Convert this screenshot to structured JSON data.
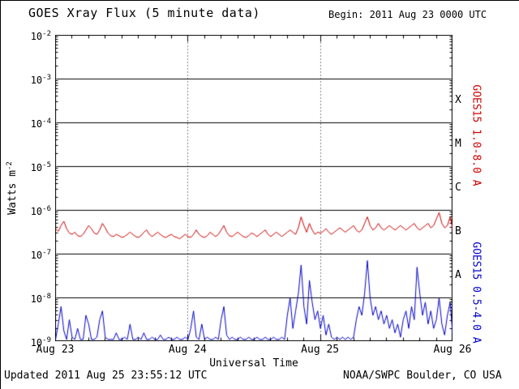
{
  "page": {
    "begin_label": "Begin: 2011 Aug 23 0000 UTC",
    "updated": "Updated 2011 Aug 25 23:55:12 UTC",
    "credit": "NOAA/SWPC Boulder, CO USA"
  },
  "chart_data": {
    "type": "line",
    "title": "GOES Xray Flux (5 minute data)",
    "xlabel": "Universal Time",
    "ylabel_base": "Watts m",
    "ylabel_exponent": "-2",
    "x_unit": "hours since 2011 Aug 23 0000 UTC",
    "xlim": [
      0,
      72
    ],
    "x_major_ticks": [
      0,
      24,
      48,
      72
    ],
    "x_tick_labels": [
      "Aug 23",
      "Aug 24",
      "Aug 25",
      "Aug 26"
    ],
    "x_minor_tick_hours": 3,
    "ylog_limits": [
      -9,
      -2
    ],
    "y_tick_exponents": [
      -2,
      -3,
      -4,
      -5,
      -6,
      -7,
      -8,
      -9
    ],
    "flare_classes": [
      {
        "label": "X",
        "center_exponent": -3.5
      },
      {
        "label": "M",
        "center_exponent": -4.5
      },
      {
        "label": "C",
        "center_exponent": -5.5
      },
      {
        "label": "B",
        "center_exponent": -6.5
      },
      {
        "label": "A",
        "center_exponent": -7.5
      }
    ],
    "grid": {
      "horizontal_decades": "solid",
      "day_boundaries": "dotted"
    },
    "legend_position": "right-rotated",
    "sample_step_hours": 0.5,
    "series": [
      {
        "name": "GOES15 1.0-8.0 A",
        "color": "#cc0000",
        "log10_flux": [
          -6.42,
          -6.48,
          -6.35,
          -6.25,
          -6.42,
          -6.52,
          -6.55,
          -6.5,
          -6.58,
          -6.6,
          -6.55,
          -6.45,
          -6.35,
          -6.42,
          -6.52,
          -6.55,
          -6.45,
          -6.3,
          -6.4,
          -6.52,
          -6.58,
          -6.6,
          -6.55,
          -6.58,
          -6.62,
          -6.6,
          -6.55,
          -6.5,
          -6.55,
          -6.6,
          -6.62,
          -6.58,
          -6.5,
          -6.45,
          -6.55,
          -6.6,
          -6.55,
          -6.5,
          -6.55,
          -6.6,
          -6.62,
          -6.58,
          -6.55,
          -6.6,
          -6.62,
          -6.65,
          -6.6,
          -6.55,
          -6.6,
          -6.62,
          -6.55,
          -6.45,
          -6.55,
          -6.6,
          -6.62,
          -6.58,
          -6.5,
          -6.55,
          -6.6,
          -6.55,
          -6.45,
          -6.35,
          -6.5,
          -6.58,
          -6.6,
          -6.55,
          -6.5,
          -6.55,
          -6.6,
          -6.62,
          -6.58,
          -6.52,
          -6.55,
          -6.6,
          -6.55,
          -6.5,
          -6.45,
          -6.55,
          -6.6,
          -6.55,
          -6.5,
          -6.55,
          -6.6,
          -6.55,
          -6.5,
          -6.45,
          -6.5,
          -6.55,
          -6.4,
          -6.15,
          -6.35,
          -6.5,
          -6.3,
          -6.45,
          -6.55,
          -6.5,
          -6.52,
          -6.48,
          -6.42,
          -6.5,
          -6.55,
          -6.5,
          -6.45,
          -6.4,
          -6.45,
          -6.5,
          -6.45,
          -6.4,
          -6.35,
          -6.45,
          -6.5,
          -6.45,
          -6.3,
          -6.15,
          -6.35,
          -6.45,
          -6.4,
          -6.3,
          -6.4,
          -6.45,
          -6.4,
          -6.35,
          -6.4,
          -6.45,
          -6.4,
          -6.35,
          -6.4,
          -6.45,
          -6.4,
          -6.35,
          -6.3,
          -6.4,
          -6.45,
          -6.4,
          -6.35,
          -6.3,
          -6.4,
          -6.35,
          -6.2,
          -6.05,
          -6.3,
          -6.4,
          -6.35,
          -6.15,
          -6.45
        ]
      },
      {
        "name": "GOES15 0.5-4.0 A",
        "color": "#0000cd",
        "log10_flux": [
          -8.95,
          -8.6,
          -8.2,
          -8.75,
          -8.95,
          -8.5,
          -8.9,
          -8.95,
          -8.7,
          -8.95,
          -8.95,
          -8.4,
          -8.6,
          -8.95,
          -8.95,
          -8.9,
          -8.5,
          -8.3,
          -8.9,
          -8.95,
          -8.95,
          -8.95,
          -8.8,
          -8.95,
          -8.95,
          -8.9,
          -8.95,
          -8.6,
          -8.95,
          -8.95,
          -8.9,
          -8.95,
          -8.8,
          -8.95,
          -8.95,
          -8.9,
          -8.95,
          -8.95,
          -8.85,
          -8.95,
          -8.95,
          -8.9,
          -8.95,
          -8.95,
          -8.9,
          -8.95,
          -8.95,
          -8.9,
          -8.95,
          -8.7,
          -8.3,
          -8.9,
          -8.95,
          -8.6,
          -8.95,
          -8.9,
          -8.95,
          -8.95,
          -8.9,
          -8.95,
          -8.5,
          -8.2,
          -8.85,
          -8.95,
          -8.9,
          -8.95,
          -8.95,
          -8.9,
          -8.95,
          -8.95,
          -8.9,
          -8.95,
          -8.95,
          -8.9,
          -8.95,
          -8.95,
          -8.9,
          -8.95,
          -8.95,
          -8.9,
          -8.95,
          -8.95,
          -8.9,
          -8.95,
          -8.4,
          -8.0,
          -8.7,
          -8.3,
          -7.9,
          -7.25,
          -8.2,
          -8.6,
          -7.6,
          -8.1,
          -8.5,
          -8.3,
          -8.7,
          -8.4,
          -8.85,
          -8.6,
          -8.9,
          -8.95,
          -8.9,
          -8.95,
          -8.9,
          -8.95,
          -8.9,
          -8.95,
          -8.9,
          -8.5,
          -8.2,
          -8.4,
          -7.9,
          -7.15,
          -8.0,
          -8.4,
          -8.2,
          -8.5,
          -8.3,
          -8.6,
          -8.4,
          -8.7,
          -8.5,
          -8.8,
          -8.6,
          -8.9,
          -8.5,
          -8.3,
          -8.7,
          -8.2,
          -8.5,
          -7.3,
          -7.9,
          -8.4,
          -8.1,
          -8.6,
          -8.3,
          -8.7,
          -8.5,
          -8.0,
          -8.6,
          -8.85,
          -8.4,
          -8.1,
          -8.9
        ]
      }
    ]
  }
}
